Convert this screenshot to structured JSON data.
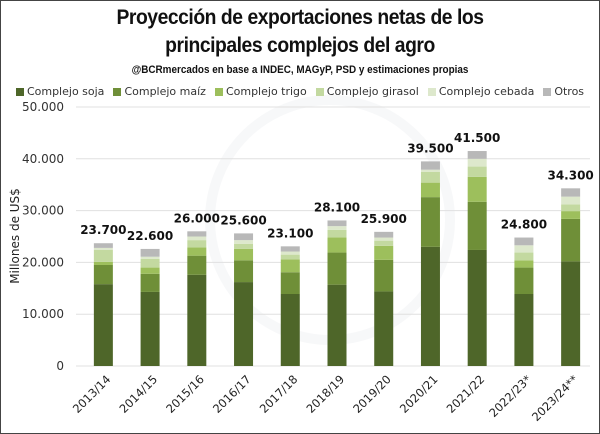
{
  "title_line1": "Proyección de exportaciones netas de los",
  "title_line2": "principales complejos del agro",
  "subtitle": "@BCRmercados en base a INDEC, MAGyP, PSD y estimaciones propias",
  "chart_data": {
    "type": "bar",
    "stacked": true,
    "title": "Proyección de exportaciones netas de los principales complejos del agro",
    "subtitle": "@BCRmercados en base a INDEC, MAGyP, PSD y estimaciones propias",
    "xlabel": "",
    "ylabel": "Millones de US$",
    "ylim": [
      0,
      50000
    ],
    "yticks": [
      0,
      10000,
      20000,
      30000,
      40000,
      50000
    ],
    "ytick_labels": [
      "0",
      "10.000",
      "20.000",
      "30.000",
      "40.000",
      "50.000"
    ],
    "grid": true,
    "legend_position": "top",
    "categories": [
      "2013/14",
      "2014/15",
      "2015/16",
      "2016/17",
      "2017/18",
      "2018/19",
      "2019/20",
      "2020/21",
      "2021/22",
      "2022/23*",
      "2023/24**"
    ],
    "totals": [
      23700,
      22600,
      26000,
      25600,
      23100,
      28100,
      25900,
      39500,
      41500,
      24800,
      34300
    ],
    "total_labels": [
      "23.700",
      "22.600",
      "26.000",
      "25.600",
      "23.100",
      "28.100",
      "25.900",
      "39.500",
      "41.500",
      "24.800",
      "34.300"
    ],
    "series": [
      {
        "name": "Complejo soja",
        "color": "#4e6629",
        "values": [
          15800,
          14300,
          17600,
          16200,
          13900,
          15700,
          14400,
          23000,
          22400,
          13900,
          20200
        ]
      },
      {
        "name": "Complejo maíz",
        "color": "#6f8f38",
        "values": [
          3700,
          3500,
          3700,
          4200,
          4200,
          6200,
          6100,
          9600,
          9300,
          5100,
          8200
        ]
      },
      {
        "name": "Complejo trigo",
        "color": "#9dbf5c",
        "values": [
          600,
          1200,
          1600,
          2200,
          2500,
          2900,
          2700,
          2800,
          4800,
          1400,
          1500
        ]
      },
      {
        "name": "Complejo girasol",
        "color": "#c3d9a0",
        "values": [
          2300,
          1700,
          1400,
          1000,
          900,
          1500,
          1000,
          2100,
          2000,
          1500,
          1300
        ]
      },
      {
        "name": "Complejo cebada",
        "color": "#dde8cc",
        "values": [
          400,
          400,
          700,
          700,
          600,
          700,
          600,
          400,
          1500,
          1400,
          1500
        ]
      },
      {
        "name": "Otros",
        "color": "#b8b8b8",
        "values": [
          900,
          1500,
          1000,
          1300,
          1000,
          1100,
          1100,
          1600,
          1500,
          1500,
          1600
        ]
      }
    ]
  }
}
